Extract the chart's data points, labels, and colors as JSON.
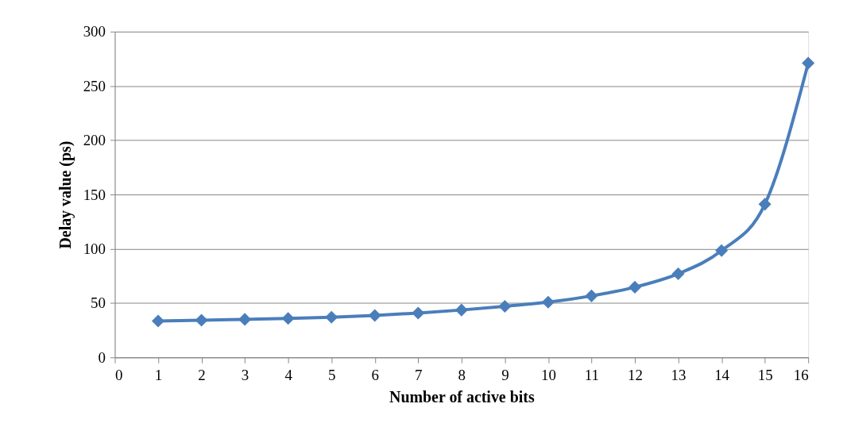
{
  "chart_data": {
    "type": "line",
    "xlabel": "Number of active bits",
    "ylabel": "Delay value (ps)",
    "x": [
      1,
      2,
      3,
      4,
      5,
      6,
      7,
      8,
      9,
      10,
      11,
      12,
      13,
      14,
      15,
      16
    ],
    "series": [
      {
        "color": "#4a7ebb",
        "values": [
          33.5,
          34.2,
          35,
          35.8,
          37,
          38.6,
          40.8,
          43.6,
          47,
          50.8,
          56.6,
          64.6,
          77,
          98.3,
          141,
          271
        ]
      }
    ],
    "xlim": [
      0,
      16
    ],
    "xticks": [
      0,
      1,
      2,
      3,
      4,
      5,
      6,
      7,
      8,
      9,
      10,
      11,
      12,
      13,
      14,
      15,
      16
    ],
    "ylim": [
      0,
      300
    ],
    "yticks": [
      0,
      50,
      100,
      150,
      200,
      250,
      300
    ],
    "grid": "y",
    "marker": "diamond",
    "line_style": "solid"
  }
}
